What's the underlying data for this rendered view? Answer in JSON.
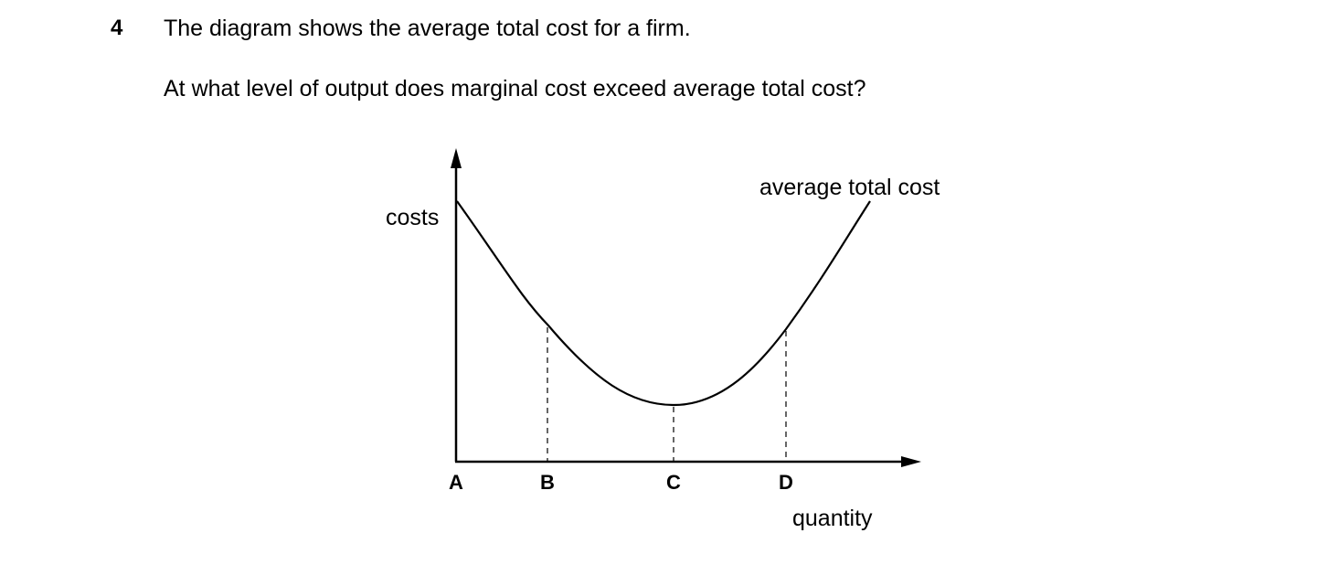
{
  "question": {
    "number": "4",
    "line1": "The diagram shows the average total cost for a firm.",
    "line2": "At what level of output does marginal cost exceed average total cost?"
  },
  "diagram": {
    "y_axis_label": "costs",
    "x_axis_label": "quantity",
    "curve_label": "average total cost",
    "points": [
      "A",
      "B",
      "C",
      "D"
    ]
  }
}
